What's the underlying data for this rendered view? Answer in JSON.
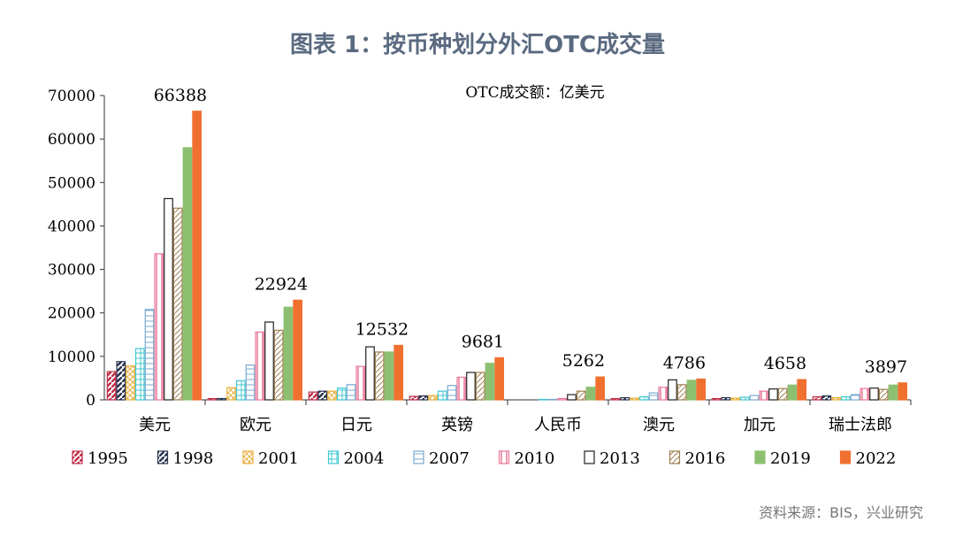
{
  "title": "图表 1：按币种划分外汇OTC成交量",
  "source": "资料来源：BIS，兴业研究",
  "chart_data": {
    "type": "bar",
    "unit_label": "OTC成交额：亿美元",
    "categories": [
      "美元",
      "欧元",
      "日元",
      "英镑",
      "人民币",
      "澳元",
      "加元",
      "瑞士法郎"
    ],
    "ylim": [
      0,
      70000
    ],
    "yticks": [
      "0",
      "10000",
      "20000",
      "30000",
      "40000",
      "50000",
      "60000",
      "70000"
    ],
    "legend_position": "bottom",
    "series": [
      {
        "name": "1995",
        "color": "#c0304a",
        "pattern": "diag-thick",
        "values": [
          6500,
          300,
          1800,
          800,
          0,
          300,
          300,
          700
        ]
      },
      {
        "name": "1998",
        "color": "#2a3550",
        "pattern": "diag-thick",
        "values": [
          8800,
          300,
          2000,
          900,
          0,
          500,
          500,
          900
        ]
      },
      {
        "name": "2001",
        "color": "#e8b040",
        "pattern": "cross",
        "values": [
          7800,
          2800,
          2000,
          1000,
          0,
          400,
          400,
          500
        ]
      },
      {
        "name": "2004",
        "color": "#40c8d0",
        "pattern": "grid",
        "values": [
          11800,
          4400,
          2700,
          2000,
          100,
          700,
          600,
          700
        ]
      },
      {
        "name": "2007",
        "color": "#7aaad0",
        "pattern": "hlines",
        "values": [
          20800,
          8000,
          3500,
          3300,
          100,
          1600,
          1000,
          1200
        ]
      },
      {
        "name": "2010",
        "color": "#e87898",
        "pattern": "vlines",
        "values": [
          33600,
          15600,
          7700,
          5200,
          300,
          2900,
          2000,
          2600
        ]
      },
      {
        "name": "2013",
        "color": "#222222",
        "pattern": "empty",
        "values": [
          46300,
          17900,
          12200,
          6300,
          1200,
          4600,
          2500,
          2700
        ]
      },
      {
        "name": "2016",
        "color": "#a08050",
        "pattern": "diag-thin",
        "values": [
          44100,
          16000,
          11000,
          6300,
          2000,
          3500,
          2600,
          2400
        ]
      },
      {
        "name": "2019",
        "color": "#8cc070",
        "pattern": "solid",
        "values": [
          58000,
          21300,
          11000,
          8400,
          2900,
          4500,
          3400,
          3400
        ]
      },
      {
        "name": "2022",
        "color": "#f07030",
        "pattern": "solid",
        "values": [
          66388,
          22924,
          12532,
          9681,
          5262,
          4786,
          4658,
          3897
        ]
      }
    ]
  }
}
